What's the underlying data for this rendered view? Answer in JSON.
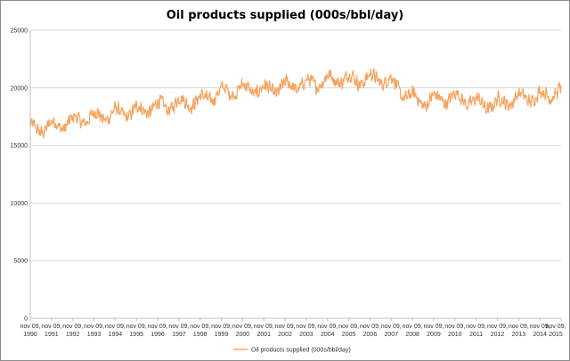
{
  "chart_data": {
    "type": "line",
    "title": "Oil products supplied (000s/bbl/day)",
    "xlabel": "",
    "ylabel": "",
    "ylim": [
      0,
      25000
    ],
    "yticks": [
      0,
      5000,
      10000,
      15000,
      20000,
      25000
    ],
    "xlim": [
      1990.86,
      2015.86
    ],
    "grid": "horizontal",
    "legend": "bottom",
    "xtick_labels": [
      "nov 09, 1990",
      "nov 09, 1991",
      "nov 09, 1992",
      "nov 09, 1993",
      "nov 09, 1994",
      "nov 09, 1995",
      "nov 09, 1996",
      "nov 09, 1997",
      "nov 09, 1998",
      "nov 09, 1999",
      "nov 09, 2000",
      "nov 09, 2001",
      "nov 09, 2002",
      "nov 09, 2003",
      "nov 09, 2004",
      "nov 09, 2005",
      "nov 09, 2006",
      "nov 09, 2007",
      "nov 09, 2008",
      "nov 09, 2009",
      "nov 09, 2010",
      "nov 09, 2011",
      "nov 09, 2012",
      "nov 09, 2013",
      "nov 09, 2014",
      "nov 09, 2015"
    ],
    "series": [
      {
        "name": "Oil products supplied (000s/bbl/day)",
        "color": "#f4a460",
        "frequency": "weekly",
        "x": [
          1990.86,
          1991.36,
          1991.86,
          1992.36,
          1992.86,
          1993.36,
          1993.86,
          1994.36,
          1994.86,
          1995.36,
          1995.86,
          1996.36,
          1996.86,
          1997.36,
          1997.86,
          1998.36,
          1998.86,
          1999.36,
          1999.86,
          2000.36,
          2000.86,
          2001.36,
          2001.86,
          2002.36,
          2002.86,
          2003.36,
          2003.86,
          2004.36,
          2004.86,
          2005.36,
          2005.86,
          2006.36,
          2006.86,
          2007.36,
          2007.86,
          2008.36,
          2008.86,
          2009.36,
          2009.86,
          2010.36,
          2010.86,
          2011.36,
          2011.86,
          2012.36,
          2012.86,
          2013.36,
          2013.86,
          2014.36,
          2014.86,
          2015.36,
          2015.86
        ],
        "y": [
          16400,
          16500,
          16700,
          16800,
          17100,
          17300,
          17500,
          17600,
          17800,
          17800,
          18000,
          18200,
          18400,
          18500,
          18700,
          18800,
          18900,
          19300,
          19600,
          19800,
          19900,
          19900,
          19800,
          19900,
          20100,
          20200,
          20300,
          20500,
          20700,
          20800,
          20800,
          20700,
          20800,
          20800,
          20600,
          19600,
          19100,
          18800,
          19000,
          19100,
          19200,
          19000,
          18700,
          18500,
          18600,
          18900,
          19100,
          19200,
          19300,
          19500,
          19700
        ],
        "weekly_range": [
          14800,
          22000
        ]
      }
    ]
  }
}
